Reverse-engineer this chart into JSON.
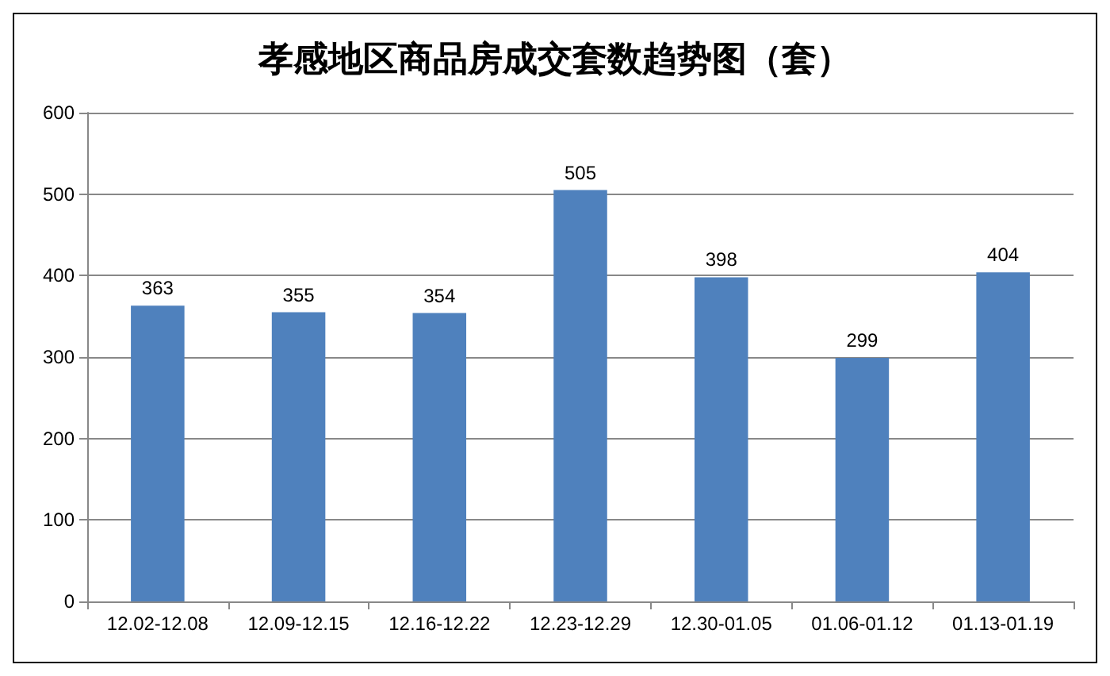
{
  "chart_data": {
    "type": "bar",
    "title": "孝感地区商品房成交套数趋势图（套）",
    "categories": [
      "12.02-12.08",
      "12.09-12.15",
      "12.16-12.22",
      "12.23-12.29",
      "12.30-01.05",
      "01.06-01.12",
      "01.13-01.19"
    ],
    "values": [
      363,
      355,
      354,
      505,
      398,
      299,
      404
    ],
    "color": "#4f81bd",
    "ylim": [
      0,
      600
    ],
    "yticks": [
      0,
      100,
      200,
      300,
      400,
      500,
      600
    ],
    "grid": "y",
    "data_labels": true
  }
}
